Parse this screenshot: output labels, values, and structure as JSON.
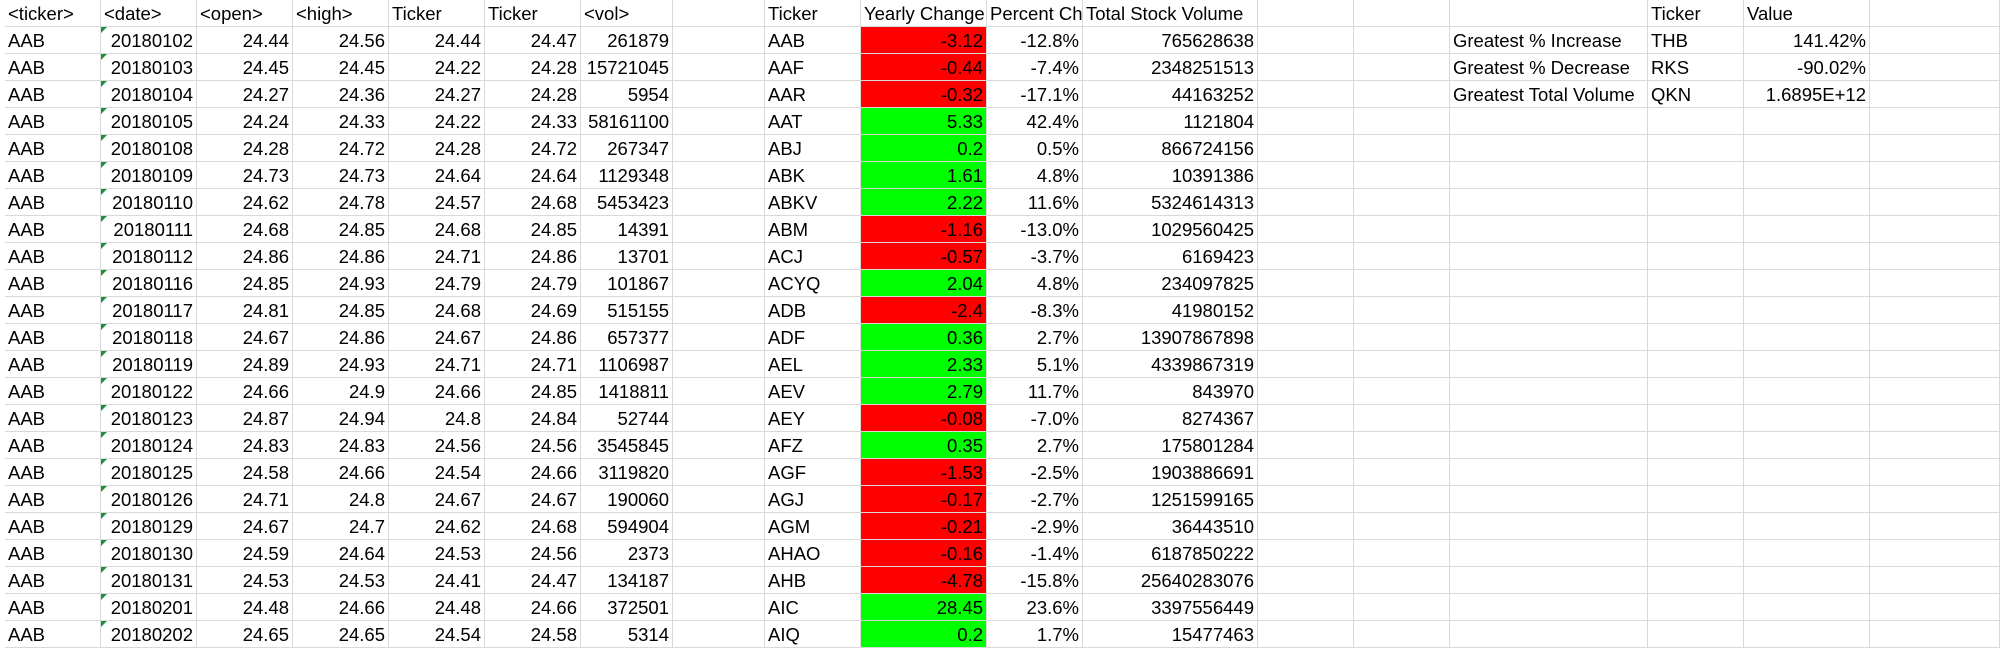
{
  "raw_table": {
    "headers": [
      "<ticker>",
      "<date>",
      "<open>",
      "<high>",
      "Ticker",
      "Ticker",
      "<vol>"
    ],
    "rows": [
      [
        "AAB",
        "20180102",
        "24.44",
        "24.56",
        "24.44",
        "24.47",
        "261879"
      ],
      [
        "AAB",
        "20180103",
        "24.45",
        "24.45",
        "24.22",
        "24.28",
        "15721045"
      ],
      [
        "AAB",
        "20180104",
        "24.27",
        "24.36",
        "24.27",
        "24.28",
        "5954"
      ],
      [
        "AAB",
        "20180105",
        "24.24",
        "24.33",
        "24.22",
        "24.33",
        "58161100"
      ],
      [
        "AAB",
        "20180108",
        "24.28",
        "24.72",
        "24.28",
        "24.72",
        "267347"
      ],
      [
        "AAB",
        "20180109",
        "24.73",
        "24.73",
        "24.64",
        "24.64",
        "1129348"
      ],
      [
        "AAB",
        "20180110",
        "24.62",
        "24.78",
        "24.57",
        "24.68",
        "5453423"
      ],
      [
        "AAB",
        "20180111",
        "24.68",
        "24.85",
        "24.68",
        "24.85",
        "14391"
      ],
      [
        "AAB",
        "20180112",
        "24.86",
        "24.86",
        "24.71",
        "24.86",
        "13701"
      ],
      [
        "AAB",
        "20180116",
        "24.85",
        "24.93",
        "24.79",
        "24.79",
        "101867"
      ],
      [
        "AAB",
        "20180117",
        "24.81",
        "24.85",
        "24.68",
        "24.69",
        "515155"
      ],
      [
        "AAB",
        "20180118",
        "24.67",
        "24.86",
        "24.67",
        "24.86",
        "657377"
      ],
      [
        "AAB",
        "20180119",
        "24.89",
        "24.93",
        "24.71",
        "24.71",
        "1106987"
      ],
      [
        "AAB",
        "20180122",
        "24.66",
        "24.9",
        "24.66",
        "24.85",
        "1418811"
      ],
      [
        "AAB",
        "20180123",
        "24.87",
        "24.94",
        "24.8",
        "24.84",
        "52744"
      ],
      [
        "AAB",
        "20180124",
        "24.83",
        "24.83",
        "24.56",
        "24.56",
        "3545845"
      ],
      [
        "AAB",
        "20180125",
        "24.58",
        "24.66",
        "24.54",
        "24.66",
        "3119820"
      ],
      [
        "AAB",
        "20180126",
        "24.71",
        "24.8",
        "24.67",
        "24.67",
        "190060"
      ],
      [
        "AAB",
        "20180129",
        "24.67",
        "24.7",
        "24.62",
        "24.68",
        "594904"
      ],
      [
        "AAB",
        "20180130",
        "24.59",
        "24.64",
        "24.53",
        "24.56",
        "2373"
      ],
      [
        "AAB",
        "20180131",
        "24.53",
        "24.53",
        "24.41",
        "24.47",
        "134187"
      ],
      [
        "AAB",
        "20180201",
        "24.48",
        "24.66",
        "24.48",
        "24.66",
        "372501"
      ],
      [
        "AAB",
        "20180202",
        "24.65",
        "24.65",
        "24.54",
        "24.58",
        "5314"
      ]
    ]
  },
  "summary_table": {
    "headers": [
      "Ticker",
      "Yearly Change",
      "Percent Ch",
      "Total Stock Volume"
    ],
    "rows": [
      {
        "ticker": "AAB",
        "change": "-3.12",
        "pct": "-12.8%",
        "volume": "765628638",
        "sign": "neg"
      },
      {
        "ticker": "AAF",
        "change": "-0.44",
        "pct": "-7.4%",
        "volume": "2348251513",
        "sign": "neg"
      },
      {
        "ticker": "AAR",
        "change": "-0.32",
        "pct": "-17.1%",
        "volume": "44163252",
        "sign": "neg"
      },
      {
        "ticker": "AAT",
        "change": "5.33",
        "pct": "42.4%",
        "volume": "1121804",
        "sign": "pos"
      },
      {
        "ticker": "ABJ",
        "change": "0.2",
        "pct": "0.5%",
        "volume": "866724156",
        "sign": "pos"
      },
      {
        "ticker": "ABK",
        "change": "1.61",
        "pct": "4.8%",
        "volume": "10391386",
        "sign": "pos"
      },
      {
        "ticker": "ABKV",
        "change": "2.22",
        "pct": "11.6%",
        "volume": "5324614313",
        "sign": "pos"
      },
      {
        "ticker": "ABM",
        "change": "-1.16",
        "pct": "-13.0%",
        "volume": "1029560425",
        "sign": "neg"
      },
      {
        "ticker": "ACJ",
        "change": "-0.57",
        "pct": "-3.7%",
        "volume": "6169423",
        "sign": "neg"
      },
      {
        "ticker": "ACYQ",
        "change": "2.04",
        "pct": "4.8%",
        "volume": "234097825",
        "sign": "pos"
      },
      {
        "ticker": "ADB",
        "change": "-2.4",
        "pct": "-8.3%",
        "volume": "41980152",
        "sign": "neg"
      },
      {
        "ticker": "ADF",
        "change": "0.36",
        "pct": "2.7%",
        "volume": "13907867898",
        "sign": "pos"
      },
      {
        "ticker": "AEL",
        "change": "2.33",
        "pct": "5.1%",
        "volume": "4339867319",
        "sign": "pos"
      },
      {
        "ticker": "AEV",
        "change": "2.79",
        "pct": "11.7%",
        "volume": "843970",
        "sign": "pos"
      },
      {
        "ticker": "AEY",
        "change": "-0.08",
        "pct": "-7.0%",
        "volume": "8274367",
        "sign": "neg"
      },
      {
        "ticker": "AFZ",
        "change": "0.35",
        "pct": "2.7%",
        "volume": "175801284",
        "sign": "pos"
      },
      {
        "ticker": "AGF",
        "change": "-1.53",
        "pct": "-2.5%",
        "volume": "1903886691",
        "sign": "neg"
      },
      {
        "ticker": "AGJ",
        "change": "-0.17",
        "pct": "-2.7%",
        "volume": "1251599165",
        "sign": "neg"
      },
      {
        "ticker": "AGM",
        "change": "-0.21",
        "pct": "-2.9%",
        "volume": "36443510",
        "sign": "neg"
      },
      {
        "ticker": "AHAO",
        "change": "-0.16",
        "pct": "-1.4%",
        "volume": "6187850222",
        "sign": "neg"
      },
      {
        "ticker": "AHB",
        "change": "-4.78",
        "pct": "-15.8%",
        "volume": "25640283076",
        "sign": "neg"
      },
      {
        "ticker": "AIC",
        "change": "28.45",
        "pct": "23.6%",
        "volume": "3397556449",
        "sign": "pos"
      },
      {
        "ticker": "AIQ",
        "change": "0.2",
        "pct": "1.7%",
        "volume": "15477463",
        "sign": "pos"
      }
    ]
  },
  "greatest_table": {
    "headers": [
      "",
      "Ticker",
      "Value"
    ],
    "rows": [
      {
        "label": "Greatest % Increase",
        "ticker": "THB",
        "value": "141.42%"
      },
      {
        "label": "Greatest % Decrease",
        "ticker": "RKS",
        "value": "-90.02%"
      },
      {
        "label": "Greatest Total Volume",
        "ticker": "QKN",
        "value": "1.6895E+12"
      }
    ]
  },
  "colors": {
    "positive_fill": "#00ff00",
    "negative_fill": "#ff0000",
    "gridline": "#d9d9d9",
    "number_as_text_marker": "#1e8f3a"
  }
}
